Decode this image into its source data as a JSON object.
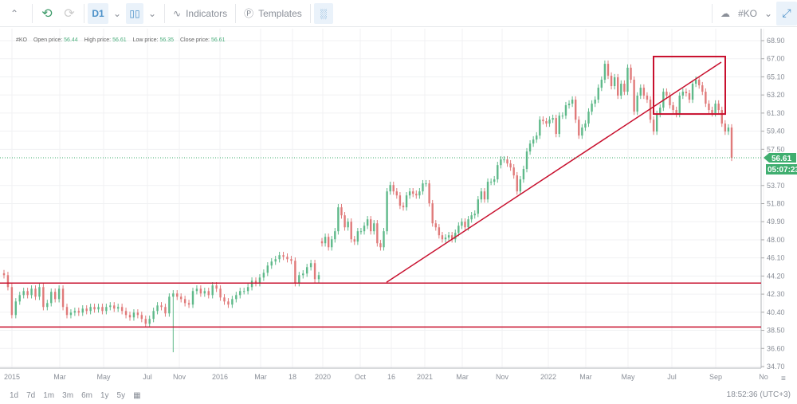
{
  "toolbar": {
    "collapse_icon": "chevron-up-icon",
    "undo_icon": "undo-icon",
    "redo_icon": "redo-icon",
    "timeframe": "D1",
    "chart_type_icon": "candlestick-icon",
    "indicators_label": "Indicators",
    "templates_label": "Templates",
    "symbol": "#KO",
    "fullscreen_icon": "collapse-arrows-icon"
  },
  "legend": {
    "symbol": "#KO",
    "open_label": "Open price:",
    "open": "56.44",
    "high_label": "High price:",
    "high": "56.61",
    "low_label": "Low price:",
    "low": "56.35",
    "close_label": "Close price:",
    "close": "56.61"
  },
  "chart_data": {
    "type": "candlestick",
    "symbol": "#KO",
    "timeframe": "D1",
    "ylim": [
      34.7,
      68.9
    ],
    "y_ticks": [
      "68.90",
      "67.00",
      "65.10",
      "63.20",
      "61.30",
      "59.40",
      "57.50",
      "53.70",
      "51.80",
      "49.90",
      "48.00",
      "46.10",
      "44.20",
      "42.30",
      "40.40",
      "38.50",
      "36.60",
      "34.70"
    ],
    "x_ticks": [
      "2015",
      "Mar",
      "May",
      "Jul",
      "Nov",
      "2016",
      "Mar",
      "18",
      "2020",
      "Oct",
      "16",
      "2021",
      "Mar",
      "Nov",
      "2022",
      "Mar",
      "May",
      "Jul",
      "Sep",
      "No"
    ],
    "grid": true,
    "closes_segment_1": [
      44.29,
      43.04,
      40.11,
      41.53,
      42.2,
      42.62,
      42.2,
      42.87,
      42.03,
      43.04,
      40.95,
      41.36,
      42.54,
      41.78,
      42.87,
      40.95,
      40.11,
      40.36,
      40.53,
      40.36,
      40.78,
      40.53,
      40.95,
      40.7,
      40.95,
      40.53,
      40.95,
      41.11,
      40.78,
      40.95,
      40.53,
      40.11,
      39.86,
      40.36,
      40.11,
      39.7,
      39.19,
      39.7,
      40.53,
      41.11,
      40.95,
      40.28,
      42.03,
      42.37,
      42.03,
      41.78,
      41.36,
      41.2,
      42.62,
      42.87,
      42.37,
      42.62,
      42.2,
      43.21,
      42.87,
      41.95,
      41.53,
      41.2,
      41.78,
      42.2,
      42.62,
      42.62,
      43.04,
      43.71,
      43.46,
      44.04,
      44.54,
      45.3,
      45.72,
      45.97,
      46.39,
      46.22,
      45.97,
      45.8,
      43.46,
      44.29,
      44.46,
      45.13,
      45.55,
      43.87,
      44.29
    ],
    "closes_segment_2": [
      47.64,
      48.31,
      47.22,
      48.06,
      48.9,
      51.41,
      50.57,
      49.31,
      49.9,
      48.06,
      47.81,
      48.9,
      48.9,
      49.48,
      50.15,
      48.9,
      49.73,
      47.64,
      47.22,
      48.9,
      53.08,
      53.75,
      53.08,
      52.66,
      51.58,
      51.41,
      52.66,
      53.08,
      52.83,
      52.66,
      53.08,
      53.92,
      53.92,
      51.83,
      49.73,
      49.31,
      48.48,
      48.06,
      48.23,
      48.48,
      48.06,
      48.73,
      49.48,
      49.9,
      49.31,
      50.15,
      50.57,
      50.74,
      52.24,
      53.08,
      52.24,
      54.09,
      54.09,
      54.34,
      55.84,
      56.43,
      56.43,
      56.01,
      55.59,
      54.76,
      53.08,
      54.34,
      55.43,
      57.27,
      58.1,
      58.52,
      58.94,
      60.61,
      60.45,
      60.2,
      60.61,
      60.78,
      59.11,
      61.03,
      61.03,
      62.12,
      62.29,
      62.71,
      60.61,
      58.94,
      59.78,
      60.2,
      61.45,
      62.29,
      62.71,
      63.96,
      64.8,
      66.47,
      65.22,
      64.13,
      65.05,
      63.13,
      64.38,
      63.54,
      66.06,
      64.8,
      61.45,
      63.13,
      63.96,
      63.13,
      62.71,
      60.61,
      59.36,
      61.2,
      61.87,
      63.54,
      63.13,
      62.12,
      61.62,
      61.2,
      63.13,
      63.54,
      63.38,
      62.71,
      64.38,
      64.8,
      64.21,
      63.54,
      62.29,
      61.62,
      61.28,
      62.29,
      61.62,
      60.2,
      59.36,
      59.78,
      56.61
    ],
    "low_outlier": {
      "segment": 1,
      "index": 43,
      "low": 36.2
    },
    "last_price": "56.61",
    "countdown": "05:07:23",
    "colors": {
      "up": "#5fb98a",
      "down": "#e07a7a",
      "drawing": "#c8102e",
      "price_tag": "#3fae6f"
    },
    "drawings": {
      "horizontal_lines": [
        43.46,
        38.85
      ],
      "trend_line": {
        "start_price": 43.54,
        "end_price": 66.64
      },
      "rectangle": {
        "top_price": 67.23,
        "bottom_price": 61.2
      }
    }
  },
  "ranges": [
    "1d",
    "7d",
    "1m",
    "3m",
    "6m",
    "1y",
    "5y"
  ],
  "calendar_icon": "calendar-icon",
  "clock": "18:52:36 (UTC+3)"
}
